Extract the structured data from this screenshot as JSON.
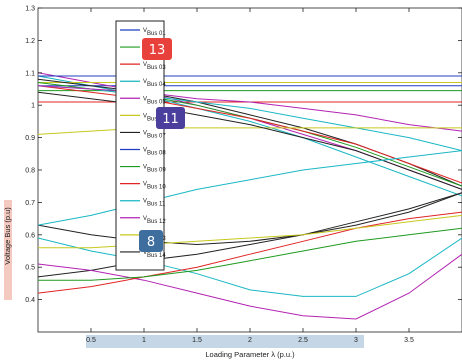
{
  "chart_data": {
    "type": "line",
    "xlabel": "Loading Parameter λ (p.u.)",
    "ylabel": "Voltage Bus (p.u)",
    "xlim": [
      0,
      4
    ],
    "ylim": [
      0.3,
      1.3
    ],
    "x_ticks": [
      "0.5",
      "1",
      "1.5",
      "2",
      "2.5",
      "3",
      "3.5"
    ],
    "y_ticks": [
      "0.4",
      "0.5",
      "0.6",
      "0.7",
      "0.8",
      "0.9",
      "1",
      "1.1",
      "1.2",
      "1.3"
    ],
    "grid": false,
    "legend_position": "upper-left",
    "series": [
      {
        "name": "V_Bus 01",
        "color": "#1f3fbf",
        "x": [
          0,
          4
        ],
        "y": [
          1.06,
          1.06
        ]
      },
      {
        "name": "V_Bus 02",
        "color": "#1f9a1f",
        "x": [
          0,
          4
        ],
        "y": [
          1.045,
          1.045
        ]
      },
      {
        "name": "V_Bus 03",
        "color": "#e02424",
        "x": [
          0,
          0.5,
          1,
          1.5,
          2,
          2.5,
          3,
          3.5,
          4
        ],
        "y": [
          1.01,
          1.01,
          1.01,
          1.01,
          1.01,
          1.01,
          1.01,
          1.01,
          1.01
        ]
      },
      {
        "name": "V_Bus 04",
        "color": "#1ab7c4",
        "x": [
          0,
          0.5,
          1,
          1.5,
          2,
          2.5,
          3,
          3.5,
          4
        ],
        "y": [
          1.09,
          1.06,
          1.03,
          0.99,
          0.95,
          0.9,
          0.84,
          0.78,
          0.72
        ]
      },
      {
        "name": "V_Bus 05",
        "color": "#b323b3",
        "x": [
          0,
          0.5,
          1,
          1.5,
          2,
          2.5,
          3,
          3.5,
          4
        ],
        "y": [
          1.1,
          1.07,
          1.04,
          1.0,
          0.96,
          0.91,
          0.86,
          0.8,
          0.74
        ]
      },
      {
        "name": "V_Bus 06",
        "color": "#c8c81e",
        "x": [
          0,
          4
        ],
        "y": [
          1.07,
          1.07
        ]
      },
      {
        "name": "V_Bus 07",
        "color": "#222222",
        "x": [
          0,
          0.5,
          1,
          1.5,
          2,
          2.5,
          3,
          3.5,
          4
        ],
        "y": [
          1.08,
          1.06,
          1.04,
          1.01,
          0.97,
          0.93,
          0.88,
          0.82,
          0.75
        ]
      },
      {
        "name": "V_Bus 08",
        "color": "#1f3fbf",
        "x": [
          0,
          4
        ],
        "y": [
          1.09,
          1.09
        ]
      },
      {
        "name": "V_Bus 09",
        "color": "#1f9a1f",
        "x": [
          0,
          0.5,
          1,
          1.5,
          2,
          2.5,
          3,
          3.5,
          4
        ],
        "y": [
          1.07,
          1.05,
          1.03,
          1.0,
          0.96,
          0.92,
          0.87,
          0.81,
          0.75
        ]
      },
      {
        "name": "V_Bus 10",
        "color": "#e02424",
        "x": [
          0,
          0.5,
          1,
          1.5,
          2,
          2.5,
          3,
          3.5,
          4
        ],
        "y": [
          1.06,
          1.04,
          1.02,
          0.99,
          0.96,
          0.92,
          0.88,
          0.82,
          0.76
        ]
      },
      {
        "name": "V_Bus 11",
        "color": "#1ab7c4",
        "x": [
          0,
          0.5,
          1,
          1.5,
          2,
          2.5,
          3,
          3.5,
          4
        ],
        "y": [
          1.06,
          1.05,
          1.03,
          1.01,
          0.99,
          0.96,
          0.93,
          0.9,
          0.86
        ]
      },
      {
        "name": "V_Bus 12",
        "color": "#b323b3",
        "x": [
          0,
          0.5,
          1,
          1.5,
          2,
          2.5,
          3,
          3.5,
          4
        ],
        "y": [
          1.06,
          1.05,
          1.04,
          1.02,
          1.01,
          0.99,
          0.97,
          0.94,
          0.92
        ]
      },
      {
        "name": "V_Bus 13",
        "color": "#c8c81e",
        "x": [
          0,
          0.5,
          1,
          1.5,
          2,
          2.5,
          3,
          3.5,
          4
        ],
        "y": [
          0.91,
          0.92,
          0.93,
          0.93,
          0.93,
          0.93,
          0.93,
          0.93,
          0.93
        ]
      },
      {
        "name": "V_Bus 14",
        "color": "#222222",
        "x": [
          0,
          0.5,
          1,
          1.5,
          2,
          2.5,
          3,
          3.5,
          4
        ],
        "y": [
          1.04,
          1.02,
          1.0,
          0.97,
          0.94,
          0.9,
          0.86,
          0.8,
          0.74
        ]
      }
    ],
    "extra_curves": [
      {
        "color": "#222222",
        "x": [
          0,
          0.5,
          1,
          1.5,
          2,
          2.5,
          3,
          3.5,
          4
        ],
        "y": [
          0.63,
          0.6,
          0.58,
          0.57,
          0.58,
          0.6,
          0.63,
          0.67,
          0.73
        ]
      },
      {
        "color": "#222222",
        "x": [
          0,
          0.5,
          1,
          1.5,
          2,
          2.5,
          3,
          3.5,
          4
        ],
        "y": [
          0.47,
          0.49,
          0.52,
          0.54,
          0.57,
          0.6,
          0.64,
          0.68,
          0.73
        ]
      },
      {
        "color": "#1ab7c4",
        "x": [
          0,
          0.5,
          1,
          1.5,
          2,
          2.5,
          3,
          3.5,
          4
        ],
        "y": [
          0.63,
          0.66,
          0.7,
          0.74,
          0.77,
          0.8,
          0.82,
          0.84,
          0.86
        ]
      },
      {
        "color": "#1ab7c4",
        "x": [
          0,
          0.5,
          1,
          1.5,
          2,
          2.5,
          3,
          3.5,
          4
        ],
        "y": [
          0.59,
          0.55,
          0.52,
          0.48,
          0.43,
          0.41,
          0.41,
          0.48,
          0.59
        ]
      },
      {
        "color": "#b323b3",
        "x": [
          0,
          0.5,
          1,
          1.5,
          2,
          2.5,
          3,
          3.5,
          4
        ],
        "y": [
          0.51,
          0.49,
          0.46,
          0.42,
          0.38,
          0.35,
          0.34,
          0.42,
          0.54
        ]
      },
      {
        "color": "#e02424",
        "x": [
          0,
          0.5,
          1,
          1.5,
          2,
          2.5,
          3,
          3.5,
          4
        ],
        "y": [
          0.42,
          0.44,
          0.47,
          0.5,
          0.54,
          0.58,
          0.62,
          0.65,
          0.67
        ]
      },
      {
        "color": "#1f9a1f",
        "x": [
          0,
          0.5,
          1,
          1.5,
          2,
          2.5,
          3,
          3.5,
          4
        ],
        "y": [
          0.46,
          0.46,
          0.47,
          0.49,
          0.52,
          0.55,
          0.58,
          0.6,
          0.62
        ]
      },
      {
        "color": "#c8c81e",
        "x": [
          0,
          0.5,
          1,
          1.5,
          2,
          2.5,
          3,
          3.5,
          4
        ],
        "y": [
          0.56,
          0.56,
          0.57,
          0.58,
          0.59,
          0.6,
          0.62,
          0.64,
          0.66
        ]
      }
    ],
    "legend_entries": [
      {
        "letter": "V",
        "sub": "Bus 01",
        "color": "#1f3fbf"
      },
      {
        "letter": "V",
        "sub": "Bus 02",
        "color": "#1f9a1f"
      },
      {
        "letter": "V",
        "sub": "Bus 03",
        "color": "#e02424"
      },
      {
        "letter": "V",
        "sub": "Bus 04",
        "color": "#1ab7c4"
      },
      {
        "letter": "V",
        "sub": "Bus 05",
        "color": "#b323b3"
      },
      {
        "letter": "V",
        "sub": "Bus 06",
        "color": "#c8c81e"
      },
      {
        "letter": "V",
        "sub": "Bus 07",
        "color": "#222222"
      },
      {
        "letter": "V",
        "sub": "Bus 08",
        "color": "#1f3fbf"
      },
      {
        "letter": "V",
        "sub": "Bus 09",
        "color": "#1f9a1f"
      },
      {
        "letter": "V",
        "sub": "Bus 10",
        "color": "#e02424"
      },
      {
        "letter": "V",
        "sub": "Bus 11",
        "color": "#1ab7c4"
      },
      {
        "letter": "V",
        "sub": "Bus 12",
        "color": "#b323b3"
      },
      {
        "letter": "V",
        "sub": "Bus 13",
        "color": "#c8c81e"
      },
      {
        "letter": "V",
        "sub": "Bus 14",
        "color": "#222222"
      }
    ]
  },
  "badges": [
    {
      "label": "13",
      "color": "#e8413c"
    },
    {
      "label": "11",
      "color": "#4b3f9e"
    },
    {
      "label": "8",
      "color": "#3d6e9e"
    }
  ]
}
